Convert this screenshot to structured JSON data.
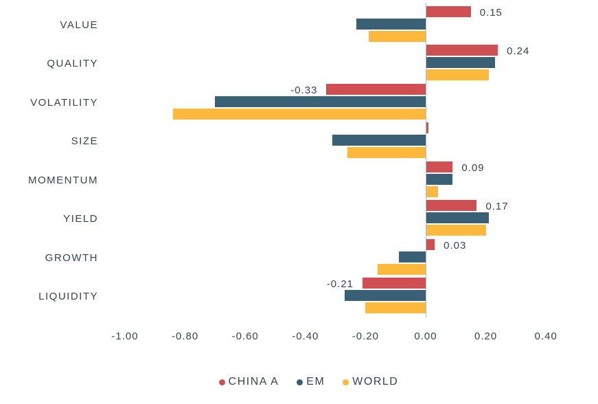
{
  "chart_data": {
    "type": "bar",
    "orientation": "horizontal",
    "title": "",
    "categories": [
      "VALUE",
      "QUALITY",
      "VOLATILITY",
      "SIZE",
      "MOMENTUM",
      "YIELD",
      "GROWTH",
      "LIQUIDITY"
    ],
    "series": [
      {
        "name": "CHINA A",
        "key": "china-a",
        "color": "#d04f53",
        "values": [
          0.15,
          0.24,
          -0.33,
          0.01,
          0.09,
          0.17,
          0.03,
          -0.21
        ],
        "data_labels": [
          "0.15",
          "0.24",
          "-0.33",
          null,
          "0.09",
          "0.17",
          "0.03",
          "-0.21"
        ]
      },
      {
        "name": "EM",
        "key": "em",
        "color": "#3a6075",
        "values": [
          -0.23,
          0.23,
          -0.7,
          -0.31,
          0.09,
          0.21,
          -0.09,
          -0.27
        ],
        "data_labels": [
          null,
          null,
          null,
          null,
          null,
          null,
          null,
          null
        ]
      },
      {
        "name": "WORLD",
        "key": "world",
        "color": "#fdb93c",
        "values": [
          -0.19,
          0.21,
          -0.84,
          -0.26,
          0.04,
          0.2,
          -0.16,
          -0.2
        ],
        "data_labels": [
          null,
          null,
          null,
          null,
          null,
          null,
          null,
          null
        ]
      }
    ],
    "x_axis": {
      "tick_labels": [
        "-1.00",
        "-0.80",
        "-0.60",
        "-0.40",
        "-0.20",
        "0.00",
        "0.20",
        "0.40"
      ],
      "tick_values": [
        -1.0,
        -0.8,
        -0.6,
        -0.4,
        -0.2,
        0.0,
        0.2,
        0.4
      ],
      "range_shown": [
        -1.07,
        0.47
      ]
    },
    "legend": {
      "position": "bottom",
      "entries": [
        "CHINA A",
        "EM",
        "WORLD"
      ]
    },
    "grid": false,
    "colors": {
      "text": "#3a434f",
      "axis_line": "#b6b9bd",
      "background": "#ffffff"
    }
  }
}
